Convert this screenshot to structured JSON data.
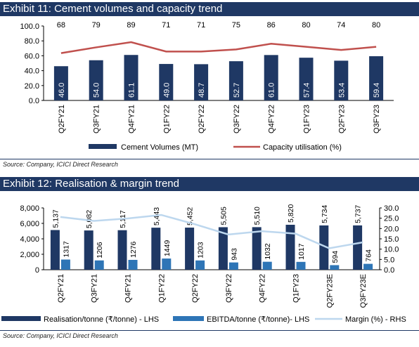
{
  "exhibit11": {
    "title": "Exhibit 11: Cement volumes and capacity trend",
    "source": "Source: Company, ICICI Direct Research"
  },
  "exhibit12": {
    "title": "Exhibit 12: Realisation & margin trend",
    "source": "Source: Company, ICICI Direct Research"
  },
  "colors": {
    "header_bg": "#1f3864",
    "bar_dark": "#1f3864",
    "bar_blue": "#2e75b6",
    "line_red": "#c0504d",
    "line_light": "#bdd7ee"
  },
  "chart_data": [
    {
      "type": "bar",
      "categories": [
        "Q2FY21",
        "Q3FY21",
        "Q4FY21",
        "Q1FY22",
        "Q2FY22",
        "Q3FY22",
        "Q4FY22",
        "Q1FY23",
        "Q2FY23",
        "Q3FY23"
      ],
      "ylim": [
        0,
        100
      ],
      "yticks": [
        "0.0",
        "20.0",
        "40.0",
        "60.0",
        "80.0",
        "100.0"
      ],
      "grid": false,
      "legend_position": "bottom",
      "series": [
        {
          "name": "Cement Volumes (MT)",
          "type": "bar",
          "values": [
            46.0,
            54.0,
            61.1,
            49.0,
            48.7,
            52.7,
            61.0,
            57.4,
            53.4,
            59.4
          ],
          "labels": [
            "46.0",
            "54.0",
            "61.1",
            "49.0",
            "48.7",
            "52.7",
            "61.0",
            "57.4",
            "53.4",
            "59.4"
          ]
        },
        {
          "name": "Capacity utilisation (%)",
          "type": "line",
          "values": [
            68,
            79,
            89,
            71,
            71,
            75,
            86,
            80,
            74,
            80
          ]
        }
      ]
    },
    {
      "type": "bar",
      "categories": [
        "Q2FY21",
        "Q3FY21",
        "Q4FY21",
        "Q1FY22",
        "Q2FY22",
        "Q3FY22",
        "Q4FY22",
        "Q1FY23",
        "Q2FY23E",
        "Q3FY23E"
      ],
      "ylim": [
        0,
        8000
      ],
      "y2lim": [
        0,
        30
      ],
      "yticks": [
        "0",
        "2,000",
        "4,000",
        "6,000",
        "8,000"
      ],
      "y2ticks": [
        "0.0",
        "5.0",
        "10.0",
        "15.0",
        "20.0",
        "25.0",
        "30.0"
      ],
      "grid": false,
      "legend_position": "bottom",
      "series": [
        {
          "name": "Realisation/tonne (₹/tonne) - LHS",
          "type": "bar",
          "values": [
            5137,
            5082,
            5117,
            5443,
            5452,
            5505,
            5510,
            5820,
            5734,
            5737
          ],
          "labels": [
            "5,137",
            "5,082",
            "5,117",
            "5,443",
            "5,452",
            "5,505",
            "5,510",
            "5,820",
            "5,734",
            "5,737"
          ]
        },
        {
          "name": "EBITDA/tonne (₹/tonne)- LHS",
          "type": "bar",
          "values": [
            1317,
            1206,
            1276,
            1449,
            1203,
            943,
            1032,
            1017,
            594,
            764
          ],
          "labels": [
            "1317",
            "1206",
            "1276",
            "1449",
            "1203",
            "943",
            "1032",
            "1017",
            "594",
            "764"
          ]
        },
        {
          "name": "Margin (%) - RHS",
          "type": "line",
          "values": [
            25.6,
            23.7,
            24.9,
            26.6,
            22.1,
            17.1,
            18.7,
            17.5,
            10.4,
            13.3
          ]
        }
      ]
    }
  ]
}
